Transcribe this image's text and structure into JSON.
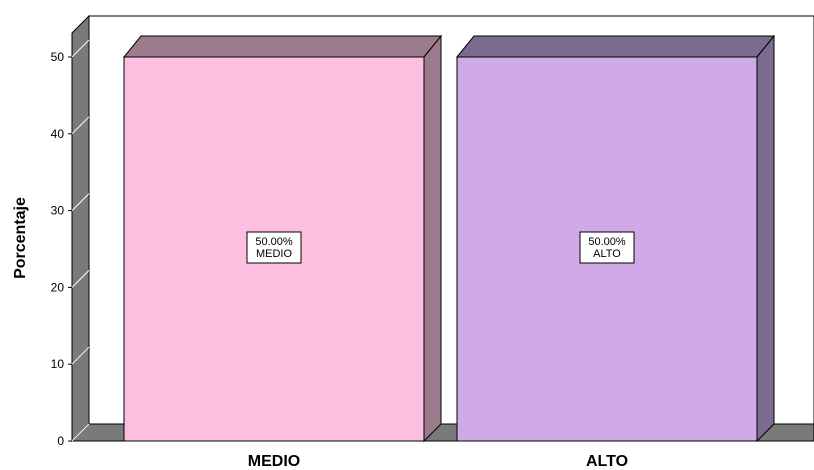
{
  "chart_data": {
    "type": "bar",
    "categories": [
      "MEDIO",
      "ALTO"
    ],
    "values": [
      50,
      50
    ],
    "data_labels": [
      {
        "value": "50.00%",
        "category": "MEDIO"
      },
      {
        "value": "50.00%",
        "category": "ALTO"
      }
    ],
    "ylabel": "Porcentaje",
    "xlabel": "",
    "ylim": [
      0,
      50
    ],
    "yticks": [
      0,
      10,
      20,
      30,
      40,
      50
    ],
    "grid": false,
    "legend": "none",
    "style": "3d",
    "colors": {
      "bars": [
        "#fcbfe0",
        "#d0aae6"
      ],
      "bar_sides": [
        "#9c7b8c",
        "#7b6b8f"
      ],
      "walls": "#7a7a7a",
      "floor": "#7a7a7a"
    }
  }
}
